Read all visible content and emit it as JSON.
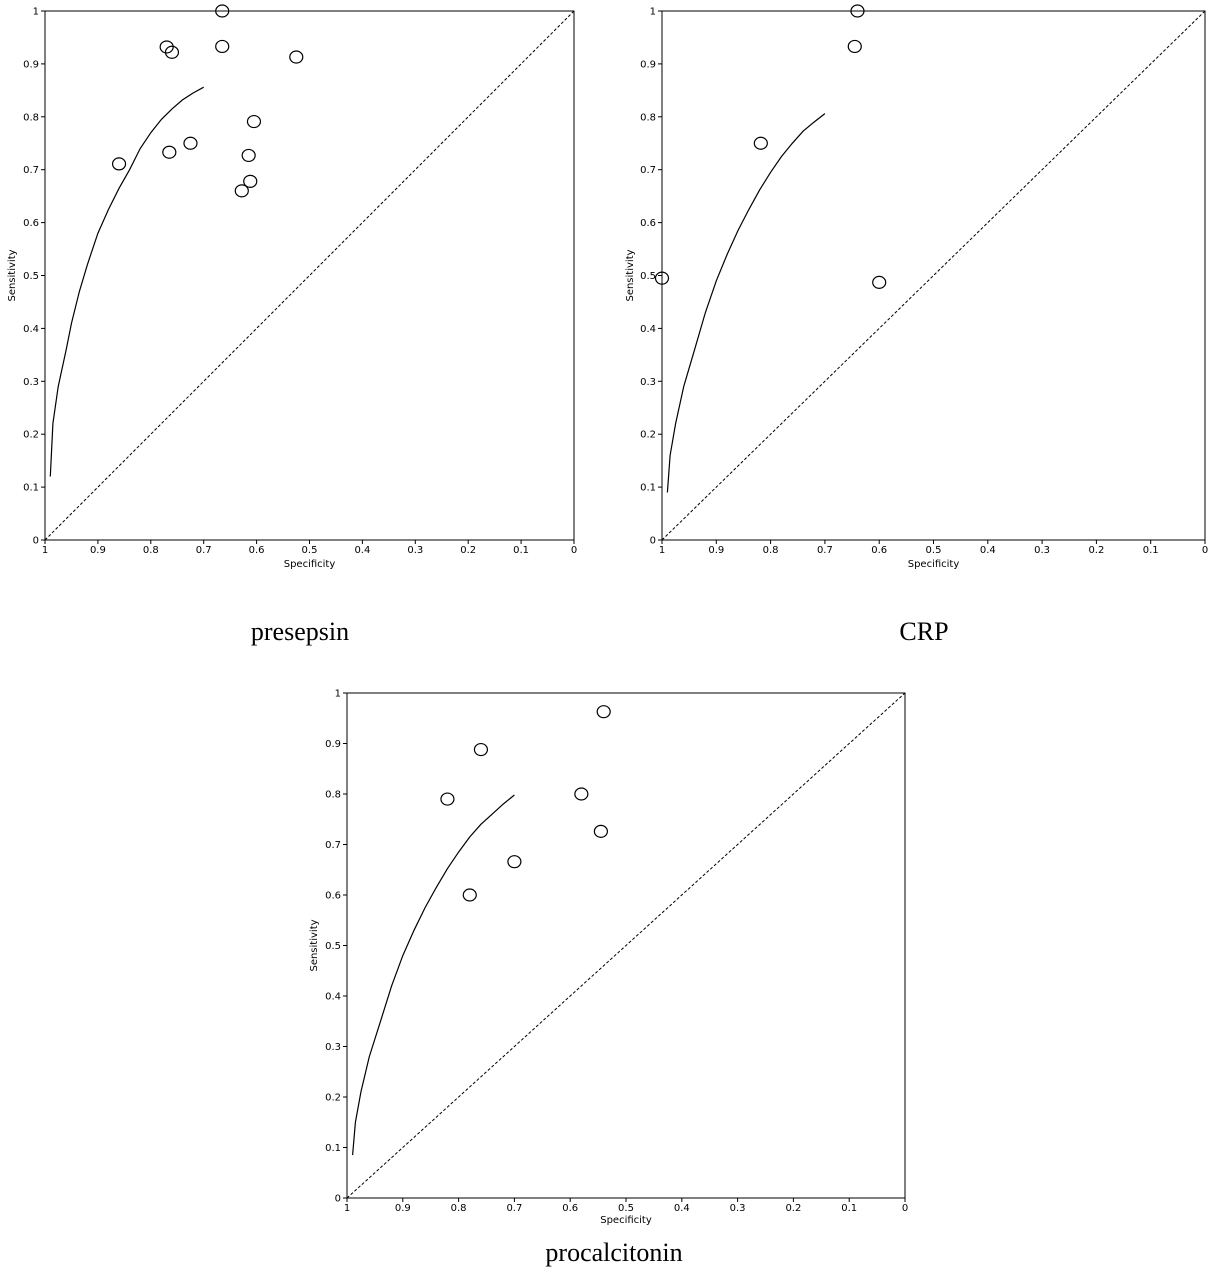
{
  "chart_data": [
    {
      "type": "scatter",
      "title": "",
      "caption": "presepsin",
      "xlabel": "Specificity",
      "ylabel": "Sensitivity",
      "xlim": [
        1,
        0
      ],
      "ylim": [
        0,
        1
      ],
      "x_ticks": [
        1,
        0.9,
        0.8,
        0.7,
        0.6,
        0.5,
        0.4,
        0.3,
        0.2,
        0.1,
        0
      ],
      "y_ticks": [
        0,
        0.1,
        0.2,
        0.3,
        0.4,
        0.5,
        0.6,
        0.7,
        0.8,
        0.9,
        1
      ],
      "x_tick_labels": [
        "1",
        "0.9",
        "0.8",
        "0.7",
        "0.6",
        "0.5",
        "0.4",
        "0.3",
        "0.2",
        "0.1",
        "0"
      ],
      "y_tick_labels": [
        "0",
        "0.1",
        "0.2",
        "0.3",
        "0.4",
        "0.5",
        "0.6",
        "0.7",
        "0.8",
        "0.9",
        "1"
      ],
      "points": [
        {
          "x": 0.665,
          "y": 1.0
        },
        {
          "x": 0.77,
          "y": 0.932
        },
        {
          "x": 0.76,
          "y": 0.922
        },
        {
          "x": 0.665,
          "y": 0.933
        },
        {
          "x": 0.525,
          "y": 0.913
        },
        {
          "x": 0.605,
          "y": 0.791
        },
        {
          "x": 0.725,
          "y": 0.75
        },
        {
          "x": 0.765,
          "y": 0.733
        },
        {
          "x": 0.615,
          "y": 0.727
        },
        {
          "x": 0.86,
          "y": 0.711
        },
        {
          "x": 0.612,
          "y": 0.678
        },
        {
          "x": 0.628,
          "y": 0.66
        }
      ],
      "curve": {
        "x": [
          0.99,
          0.985,
          0.975,
          0.96,
          0.95,
          0.935,
          0.92,
          0.9,
          0.88,
          0.86,
          0.84,
          0.82,
          0.8,
          0.78,
          0.76,
          0.74,
          0.72,
          0.7
        ],
        "y": [
          0.12,
          0.22,
          0.29,
          0.36,
          0.41,
          0.47,
          0.52,
          0.58,
          0.625,
          0.665,
          0.7,
          0.74,
          0.77,
          0.795,
          0.815,
          0.832,
          0.845,
          0.856
        ]
      },
      "reference_line": "diagonal-dashed"
    },
    {
      "type": "scatter",
      "title": "",
      "caption": "CRP",
      "xlabel": "Specificity",
      "ylabel": "Sensitivity",
      "xlim": [
        1,
        0
      ],
      "ylim": [
        0,
        1
      ],
      "x_ticks": [
        1,
        0.9,
        0.8,
        0.7,
        0.6,
        0.5,
        0.4,
        0.3,
        0.2,
        0.1,
        0
      ],
      "y_ticks": [
        0,
        0.1,
        0.2,
        0.3,
        0.4,
        0.5,
        0.6,
        0.7,
        0.8,
        0.9,
        1
      ],
      "x_tick_labels": [
        "1",
        "0.9",
        "0.8",
        "0.7",
        "0.6",
        "0.5",
        "0.4",
        "0.3",
        "0.2",
        "0.1",
        "0"
      ],
      "y_tick_labels": [
        "0",
        "0.1",
        "0.2",
        "0.3",
        "0.4",
        "0.5",
        "0.6",
        "0.7",
        "0.8",
        "0.9",
        "1"
      ],
      "points": [
        {
          "x": 0.64,
          "y": 1.0
        },
        {
          "x": 0.645,
          "y": 0.933
        },
        {
          "x": 0.818,
          "y": 0.75
        },
        {
          "x": 1.0,
          "y": 0.495
        },
        {
          "x": 0.6,
          "y": 0.487
        }
      ],
      "curve": {
        "x": [
          0.99,
          0.985,
          0.975,
          0.96,
          0.94,
          0.92,
          0.9,
          0.88,
          0.86,
          0.84,
          0.82,
          0.8,
          0.78,
          0.76,
          0.74,
          0.72,
          0.7
        ],
        "y": [
          0.09,
          0.16,
          0.22,
          0.29,
          0.36,
          0.43,
          0.49,
          0.54,
          0.585,
          0.625,
          0.662,
          0.695,
          0.725,
          0.75,
          0.773,
          0.79,
          0.806
        ]
      },
      "reference_line": "diagonal-dashed"
    },
    {
      "type": "scatter",
      "title": "",
      "caption": "procalcitonin",
      "xlabel": "Specificity",
      "ylabel": "Sensitivity",
      "xlim": [
        1,
        0
      ],
      "ylim": [
        0,
        1
      ],
      "x_ticks": [
        1,
        0.9,
        0.8,
        0.7,
        0.6,
        0.5,
        0.4,
        0.3,
        0.2,
        0.1,
        0
      ],
      "y_ticks": [
        0,
        0.1,
        0.2,
        0.3,
        0.4,
        0.5,
        0.6,
        0.7,
        0.8,
        0.9,
        1
      ],
      "x_tick_labels": [
        "1",
        "0.9",
        "0.8",
        "0.7",
        "0.6",
        "0.5",
        "0.4",
        "0.3",
        "0.2",
        "0.1",
        "0"
      ],
      "y_tick_labels": [
        "0",
        "0.1",
        "0.2",
        "0.3",
        "0.4",
        "0.5",
        "0.6",
        "0.7",
        "0.8",
        "0.9",
        "1"
      ],
      "points": [
        {
          "x": 0.54,
          "y": 0.963
        },
        {
          "x": 0.76,
          "y": 0.888
        },
        {
          "x": 0.58,
          "y": 0.8
        },
        {
          "x": 0.82,
          "y": 0.79
        },
        {
          "x": 0.545,
          "y": 0.726
        },
        {
          "x": 0.7,
          "y": 0.666
        },
        {
          "x": 0.78,
          "y": 0.6
        }
      ],
      "curve": {
        "x": [
          0.99,
          0.985,
          0.975,
          0.96,
          0.94,
          0.92,
          0.9,
          0.88,
          0.86,
          0.84,
          0.82,
          0.8,
          0.78,
          0.76,
          0.74,
          0.72,
          0.7
        ],
        "y": [
          0.085,
          0.15,
          0.21,
          0.28,
          0.35,
          0.42,
          0.48,
          0.53,
          0.575,
          0.615,
          0.652,
          0.685,
          0.715,
          0.74,
          0.76,
          0.78,
          0.798
        ]
      },
      "reference_line": "diagonal-dashed"
    }
  ]
}
